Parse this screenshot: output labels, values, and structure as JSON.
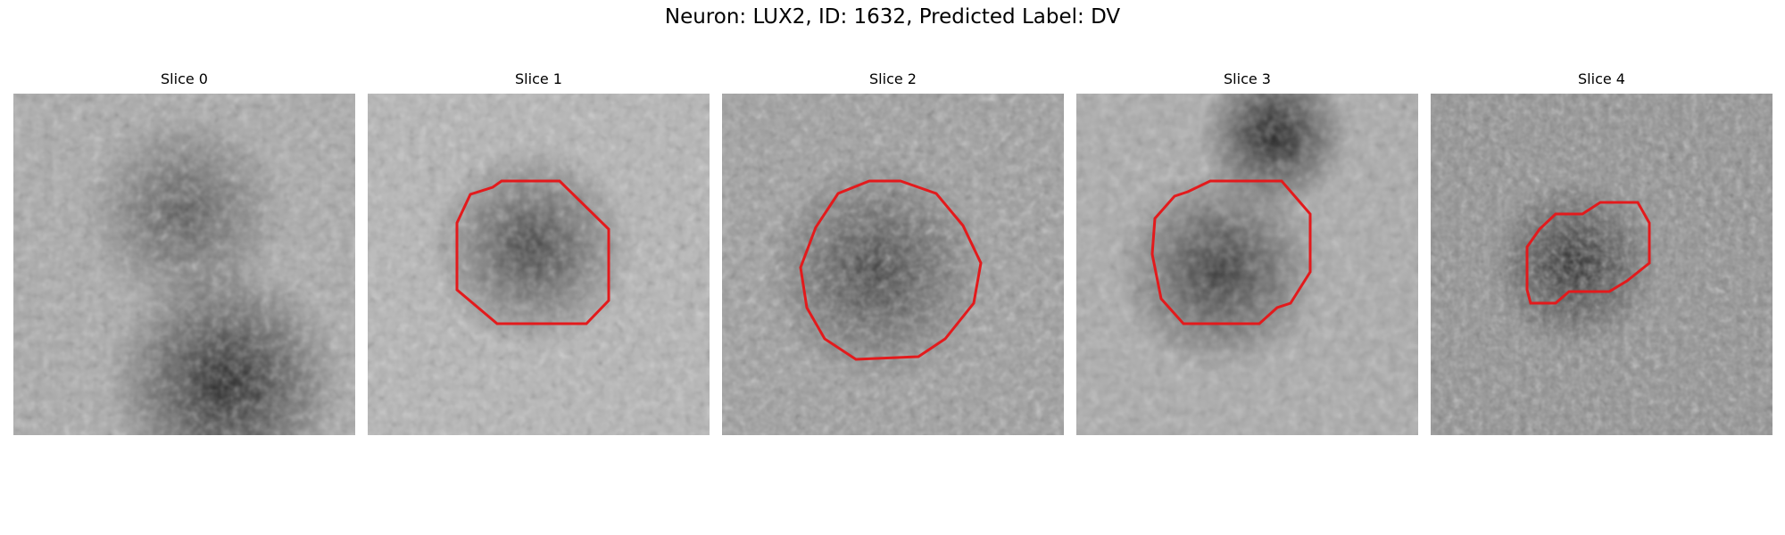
{
  "figure_title": "Neuron: LUX2, ID: 1632, Predicted Label: DV",
  "slices": [
    {
      "title": "Slice 0",
      "contour": false
    },
    {
      "title": "Slice 1",
      "contour": true
    },
    {
      "title": "Slice 2",
      "contour": true
    },
    {
      "title": "Slice 3",
      "contour": true
    },
    {
      "title": "Slice 4",
      "contour": true
    }
  ],
  "contour_color": "#e31a1c",
  "colormap": "grayscale"
}
